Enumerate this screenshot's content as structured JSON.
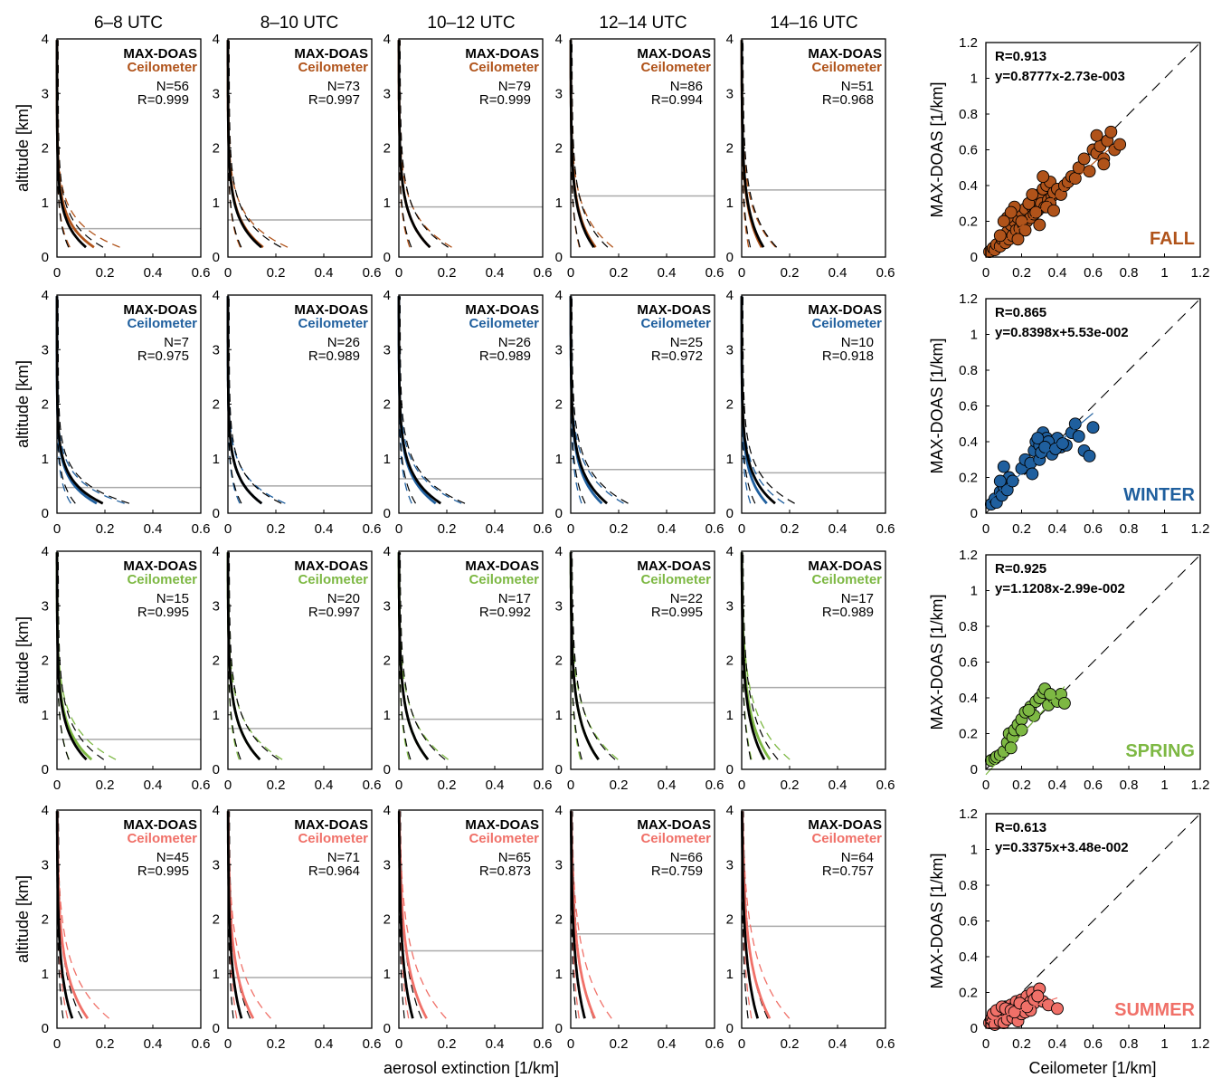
{
  "figure": {
    "time_labels": [
      "6–8 UTC",
      "8–10 UTC",
      "10–12 UTC",
      "12–14 UTC",
      "14–16 UTC"
    ],
    "profile_ylabel": "altitude [km]",
    "profile_xlabel": "aerosol extinction [1/km]",
    "scatter_ylabel": "MAX-DOAS [1/km]",
    "scatter_xlabel": "Ceilometer [1/km]",
    "legend_maxdoas": "MAX-DOAS",
    "legend_ceilometer": "Ceilometer",
    "profile_x_ticks": [
      "0",
      "0.2",
      "0.4",
      "0.6"
    ],
    "profile_y_ticks": [
      "0",
      "1",
      "2",
      "3",
      "4"
    ],
    "scatter_ticks": [
      "0",
      "0.2",
      "0.4",
      "0.6",
      "0.8",
      "1",
      "1.2"
    ]
  },
  "chart_data": [
    {
      "type": "line",
      "panel": "profiles",
      "season": "FALL",
      "color": "#B0531A",
      "xlim": [
        0,
        0.6
      ],
      "ylim": [
        0,
        4
      ],
      "panels": [
        {
          "time": "6–8 UTC",
          "N": "N=56",
          "R": "R=0.999",
          "blh": 0.52,
          "peak_black": 0.18,
          "peak_color": 0.23,
          "decay": 0.45
        },
        {
          "time": "8–10 UTC",
          "N": "N=73",
          "R": "R=0.997",
          "blh": 0.68,
          "peak_black": 0.2,
          "peak_color": 0.21,
          "decay": 0.5
        },
        {
          "time": "10–12 UTC",
          "N": "N=79",
          "R": "R=0.999",
          "blh": 0.92,
          "peak_black": 0.18,
          "peak_color": 0.18,
          "decay": 0.55
        },
        {
          "time": "12–14 UTC",
          "N": "N=86",
          "R": "R=0.994",
          "blh": 1.12,
          "peak_black": 0.13,
          "peak_color": 0.14,
          "decay": 0.6
        },
        {
          "time": "14–16 UTC",
          "N": "N=51",
          "R": "R=0.968",
          "blh": 1.23,
          "peak_black": 0.12,
          "peak_color": 0.11,
          "decay": 0.65
        }
      ]
    },
    {
      "type": "line",
      "panel": "profiles",
      "season": "WINTER",
      "color": "#1F5F9E",
      "xlim": [
        0,
        0.6
      ],
      "ylim": [
        0,
        4
      ],
      "panels": [
        {
          "time": "6–8 UTC",
          "N": "N=7",
          "R": "R=0.975",
          "blh": 0.47,
          "peak_black": 0.3,
          "peak_color": 0.26,
          "decay": 0.4
        },
        {
          "time": "8–10 UTC",
          "N": "N=26",
          "R": "R=0.989",
          "blh": 0.5,
          "peak_black": 0.21,
          "peak_color": 0.21,
          "decay": 0.45
        },
        {
          "time": "10–12 UTC",
          "N": "N=26",
          "R": "R=0.989",
          "blh": 0.63,
          "peak_black": 0.25,
          "peak_color": 0.22,
          "decay": 0.5
        },
        {
          "time": "12–14 UTC",
          "N": "N=25",
          "R": "R=0.972",
          "blh": 0.8,
          "peak_black": 0.21,
          "peak_color": 0.18,
          "decay": 0.55
        },
        {
          "time": "14–16 UTC",
          "N": "N=10",
          "R": "R=0.918",
          "blh": 0.74,
          "peak_black": 0.2,
          "peak_color": 0.15,
          "decay": 0.5
        }
      ]
    },
    {
      "type": "line",
      "panel": "profiles",
      "season": "SPRING",
      "color": "#7DB843",
      "xlim": [
        0,
        0.6
      ],
      "ylim": [
        0,
        4
      ],
      "panels": [
        {
          "time": "6–8 UTC",
          "N": "N=15",
          "R": "R=0.995",
          "blh": 0.55,
          "peak_black": 0.17,
          "peak_color": 0.2,
          "decay": 0.55
        },
        {
          "time": "8–10 UTC",
          "N": "N=20",
          "R": "R=0.997",
          "blh": 0.75,
          "peak_black": 0.18,
          "peak_color": 0.18,
          "decay": 0.6
        },
        {
          "time": "10–12 UTC",
          "N": "N=17",
          "R": "R=0.992",
          "blh": 0.92,
          "peak_black": 0.16,
          "peak_color": 0.16,
          "decay": 0.65
        },
        {
          "time": "12–14 UTC",
          "N": "N=22",
          "R": "R=0.995",
          "blh": 1.22,
          "peak_black": 0.15,
          "peak_color": 0.15,
          "decay": 0.7
        },
        {
          "time": "14–16 UTC",
          "N": "N=17",
          "R": "R=0.989",
          "blh": 1.5,
          "peak_black": 0.12,
          "peak_color": 0.15,
          "decay": 0.75
        }
      ]
    },
    {
      "type": "line",
      "panel": "profiles",
      "season": "SUMMER",
      "color": "#F07068",
      "xlim": [
        0,
        0.6
      ],
      "ylim": [
        0,
        4
      ],
      "panels": [
        {
          "time": "6–8 UTC",
          "N": "N=45",
          "R": "R=0.995",
          "blh": 0.7,
          "peak_black": 0.08,
          "peak_color": 0.16,
          "decay": 0.8
        },
        {
          "time": "8–10 UTC",
          "N": "N=71",
          "R": "R=0.964",
          "blh": 0.93,
          "peak_black": 0.07,
          "peak_color": 0.13,
          "decay": 0.85
        },
        {
          "time": "10–12 UTC",
          "N": "N=65",
          "R": "R=0.873",
          "blh": 1.42,
          "peak_black": 0.07,
          "peak_color": 0.14,
          "decay": 0.95
        },
        {
          "time": "12–14 UTC",
          "N": "N=66",
          "R": "R=0.759",
          "blh": 1.73,
          "peak_black": 0.07,
          "peak_color": 0.12,
          "decay": 1.0
        },
        {
          "time": "14–16 UTC",
          "N": "N=64",
          "R": "R=0.757",
          "blh": 1.87,
          "peak_black": 0.08,
          "peak_color": 0.14,
          "decay": 1.0
        }
      ]
    },
    {
      "type": "scatter",
      "season": "FALL",
      "color": "#B0531A",
      "R": "R=0.913",
      "eq": "y=0.8777x-2.73e-003",
      "slope": 0.8777,
      "intercept": -0.00273,
      "xlim": [
        0,
        1.2
      ],
      "ylim": [
        0,
        1.2
      ],
      "x": [
        0.02,
        0.04,
        0.05,
        0.06,
        0.08,
        0.09,
        0.1,
        0.11,
        0.12,
        0.13,
        0.14,
        0.15,
        0.16,
        0.17,
        0.18,
        0.19,
        0.2,
        0.21,
        0.22,
        0.23,
        0.24,
        0.25,
        0.26,
        0.27,
        0.28,
        0.29,
        0.3,
        0.31,
        0.32,
        0.33,
        0.34,
        0.35,
        0.36,
        0.37,
        0.38,
        0.4,
        0.42,
        0.44,
        0.46,
        0.48,
        0.5,
        0.52,
        0.55,
        0.58,
        0.6,
        0.62,
        0.64,
        0.66,
        0.68,
        0.7,
        0.72,
        0.75,
        0.12,
        0.16,
        0.2,
        0.24,
        0.28,
        0.32,
        0.36,
        0.22,
        0.26,
        0.3,
        0.14,
        0.18,
        0.08,
        0.1,
        0.34,
        0.38,
        0.62,
        0.66
      ],
      "y": [
        0.03,
        0.05,
        0.04,
        0.07,
        0.06,
        0.1,
        0.12,
        0.08,
        0.14,
        0.1,
        0.18,
        0.12,
        0.2,
        0.15,
        0.22,
        0.16,
        0.25,
        0.18,
        0.27,
        0.2,
        0.3,
        0.22,
        0.28,
        0.24,
        0.33,
        0.26,
        0.35,
        0.3,
        0.38,
        0.28,
        0.4,
        0.32,
        0.42,
        0.34,
        0.36,
        0.38,
        0.35,
        0.4,
        0.42,
        0.45,
        0.44,
        0.5,
        0.55,
        0.48,
        0.6,
        0.58,
        0.62,
        0.55,
        0.65,
        0.7,
        0.6,
        0.63,
        0.22,
        0.28,
        0.2,
        0.3,
        0.25,
        0.45,
        0.3,
        0.15,
        0.35,
        0.18,
        0.25,
        0.1,
        0.12,
        0.2,
        0.28,
        0.26,
        0.68,
        0.52
      ]
    },
    {
      "type": "scatter",
      "season": "WINTER",
      "color": "#1F5F9E",
      "R": "R=0.865",
      "eq": "y=0.8398x+5.53e-002",
      "slope": 0.8398,
      "intercept": 0.0553,
      "xlim": [
        0,
        1.2
      ],
      "ylim": [
        0,
        1.2
      ],
      "x": [
        0.03,
        0.05,
        0.06,
        0.08,
        0.09,
        0.1,
        0.12,
        0.13,
        0.15,
        0.2,
        0.22,
        0.25,
        0.27,
        0.28,
        0.3,
        0.3,
        0.32,
        0.33,
        0.34,
        0.35,
        0.36,
        0.37,
        0.38,
        0.4,
        0.42,
        0.45,
        0.48,
        0.5,
        0.52,
        0.55,
        0.58,
        0.6,
        0.1,
        0.08,
        0.26,
        0.31,
        0.35,
        0.29,
        0.33,
        0.39,
        0.43
      ],
      "y": [
        0.05,
        0.08,
        0.06,
        0.12,
        0.1,
        0.15,
        0.13,
        0.2,
        0.18,
        0.25,
        0.3,
        0.28,
        0.35,
        0.4,
        0.38,
        0.3,
        0.45,
        0.36,
        0.42,
        0.35,
        0.38,
        0.33,
        0.4,
        0.42,
        0.37,
        0.38,
        0.45,
        0.5,
        0.43,
        0.35,
        0.32,
        0.48,
        0.26,
        0.18,
        0.22,
        0.34,
        0.4,
        0.42,
        0.37,
        0.36,
        0.39
      ]
    },
    {
      "type": "scatter",
      "season": "SPRING",
      "color": "#7DB843",
      "R": "R=0.925",
      "eq": "y=1.1208x-2.99e-002",
      "slope": 1.1208,
      "intercept": -0.0299,
      "xlim": [
        0,
        1.2
      ],
      "ylim": [
        0,
        1.2
      ],
      "x": [
        0.03,
        0.05,
        0.06,
        0.08,
        0.1,
        0.12,
        0.13,
        0.15,
        0.16,
        0.18,
        0.2,
        0.22,
        0.25,
        0.27,
        0.28,
        0.3,
        0.32,
        0.35,
        0.38,
        0.4,
        0.42,
        0.44,
        0.14,
        0.2,
        0.24,
        0.33,
        0.36
      ],
      "y": [
        0.05,
        0.06,
        0.07,
        0.08,
        0.1,
        0.15,
        0.2,
        0.18,
        0.22,
        0.25,
        0.28,
        0.32,
        0.35,
        0.3,
        0.38,
        0.4,
        0.43,
        0.36,
        0.4,
        0.38,
        0.42,
        0.37,
        0.12,
        0.22,
        0.33,
        0.45,
        0.42
      ]
    },
    {
      "type": "scatter",
      "season": "SUMMER",
      "color": "#F07068",
      "R": "R=0.613",
      "eq": "y=0.3375x+3.48e-002",
      "slope": 0.3375,
      "intercept": 0.0348,
      "xlim": [
        0,
        1.2
      ],
      "ylim": [
        0,
        1.2
      ],
      "x": [
        0.02,
        0.03,
        0.04,
        0.05,
        0.06,
        0.07,
        0.08,
        0.09,
        0.1,
        0.11,
        0.12,
        0.13,
        0.14,
        0.15,
        0.16,
        0.17,
        0.18,
        0.19,
        0.2,
        0.21,
        0.22,
        0.23,
        0.24,
        0.25,
        0.26,
        0.27,
        0.28,
        0.3,
        0.32,
        0.35,
        0.4,
        0.05,
        0.08,
        0.1,
        0.12,
        0.15,
        0.18,
        0.2,
        0.22,
        0.25,
        0.04,
        0.06,
        0.09,
        0.11,
        0.14,
        0.16,
        0.19,
        0.23,
        0.27,
        0.29
      ],
      "y": [
        0.03,
        0.05,
        0.04,
        0.07,
        0.06,
        0.08,
        0.05,
        0.1,
        0.07,
        0.12,
        0.08,
        0.1,
        0.13,
        0.09,
        0.12,
        0.15,
        0.1,
        0.13,
        0.16,
        0.12,
        0.14,
        0.18,
        0.13,
        0.15,
        0.2,
        0.14,
        0.17,
        0.22,
        0.15,
        0.13,
        0.11,
        0.02,
        0.04,
        0.03,
        0.05,
        0.06,
        0.04,
        0.08,
        0.09,
        0.1,
        0.08,
        0.1,
        0.12,
        0.11,
        0.1,
        0.09,
        0.14,
        0.12,
        0.16,
        0.18
      ]
    }
  ]
}
